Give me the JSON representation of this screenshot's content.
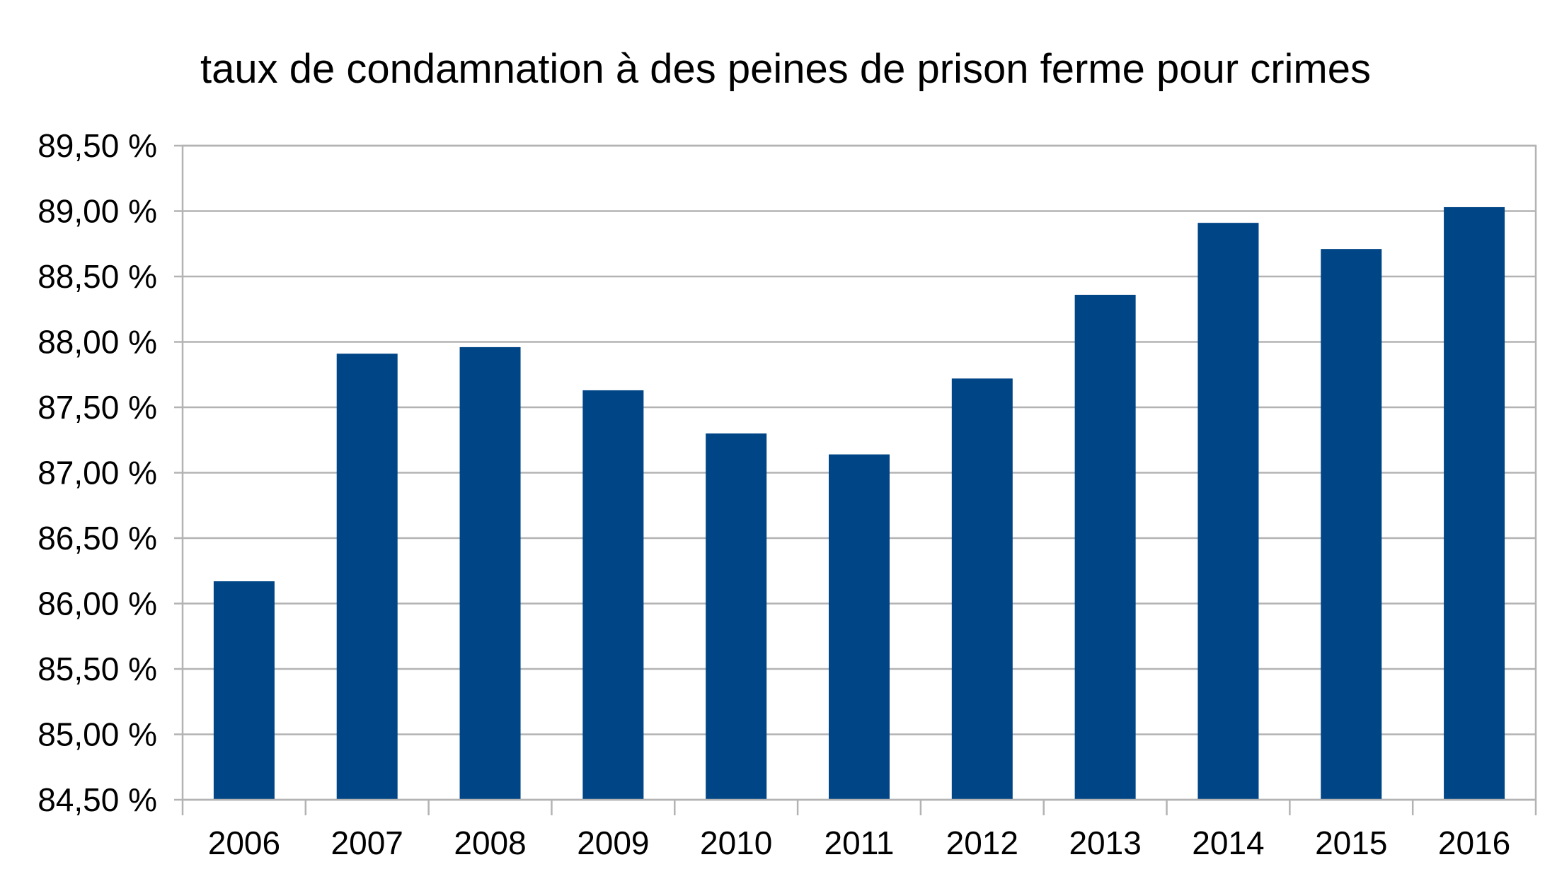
{
  "chart_data": {
    "type": "bar",
    "title": "taux de condamnation à des peines de prison ferme pour crimes",
    "xlabel": "",
    "ylabel": "",
    "categories": [
      "2006",
      "2007",
      "2008",
      "2009",
      "2010",
      "2011",
      "2012",
      "2013",
      "2014",
      "2015",
      "2016"
    ],
    "series": [
      {
        "values": [
          86.17,
          87.91,
          87.96,
          87.63,
          87.3,
          87.14,
          87.72,
          88.36,
          88.91,
          88.71,
          89.03
        ]
      }
    ],
    "ylim": [
      84.5,
      89.5
    ],
    "yticks": [
      84.5,
      85.0,
      85.5,
      86.0,
      86.5,
      87.0,
      87.5,
      88.0,
      88.5,
      89.0,
      89.5
    ],
    "ytick_labels": [
      "84,50 %",
      "85,00 %",
      "85,50 %",
      "86,00 %",
      "86,50 %",
      "87,00 %",
      "87,50 %",
      "88,00 %",
      "88,50 %",
      "89,00 %",
      "89,50 %"
    ],
    "grid": true,
    "legend": "none",
    "colors": {
      "bar": "#004586",
      "grid": "#b3b3b3"
    }
  }
}
